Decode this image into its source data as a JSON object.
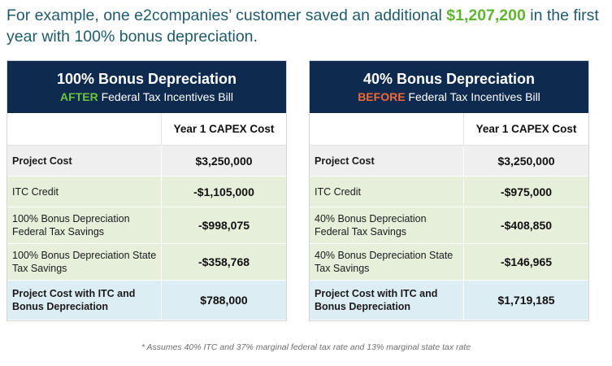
{
  "intro": {
    "text_before": "For example, one e2companies’ customer saved an additional ",
    "amount": "$1,207,200",
    "text_after": " in the first year with 100% bonus depreciation."
  },
  "left_table": {
    "title": "100% Bonus Depreciation",
    "tag": "AFTER",
    "subtitle": " Federal Tax Incentives Bill",
    "column_header": "Year 1 CAPEX Cost",
    "rows": [
      {
        "label": "Project Cost",
        "value": "$3,250,000"
      },
      {
        "label": "ITC Credit",
        "value": "-$1,105,000"
      },
      {
        "label": "100% Bonus Depreciation Federal Tax Savings",
        "value": "-$998,075"
      },
      {
        "label": "100% Bonus Depreciation State Tax Savings",
        "value": "-$358,768"
      },
      {
        "label": "Project Cost with ITC and Bonus Depreciation",
        "value": "$788,000"
      }
    ]
  },
  "right_table": {
    "title": "40% Bonus Depreciation",
    "tag": "BEFORE",
    "subtitle": " Federal Tax Incentives Bill",
    "column_header": "Year 1 CAPEX Cost",
    "rows": [
      {
        "label": "Project Cost",
        "value": "$3,250,000"
      },
      {
        "label": "ITC Credit",
        "value": "-$975,000"
      },
      {
        "label": "40% Bonus Depreciation Federal Tax Savings",
        "value": "-$408,850"
      },
      {
        "label": "40% Bonus Depreciation State Tax Savings",
        "value": "-$146,965"
      },
      {
        "label": "Project Cost with ITC and Bonus Depreciation",
        "value": "$1,719,185"
      }
    ]
  },
  "footnote": "* Assumes 40% ITC and 37% marginal federal tax rate and 13% marginal state tax rate"
}
